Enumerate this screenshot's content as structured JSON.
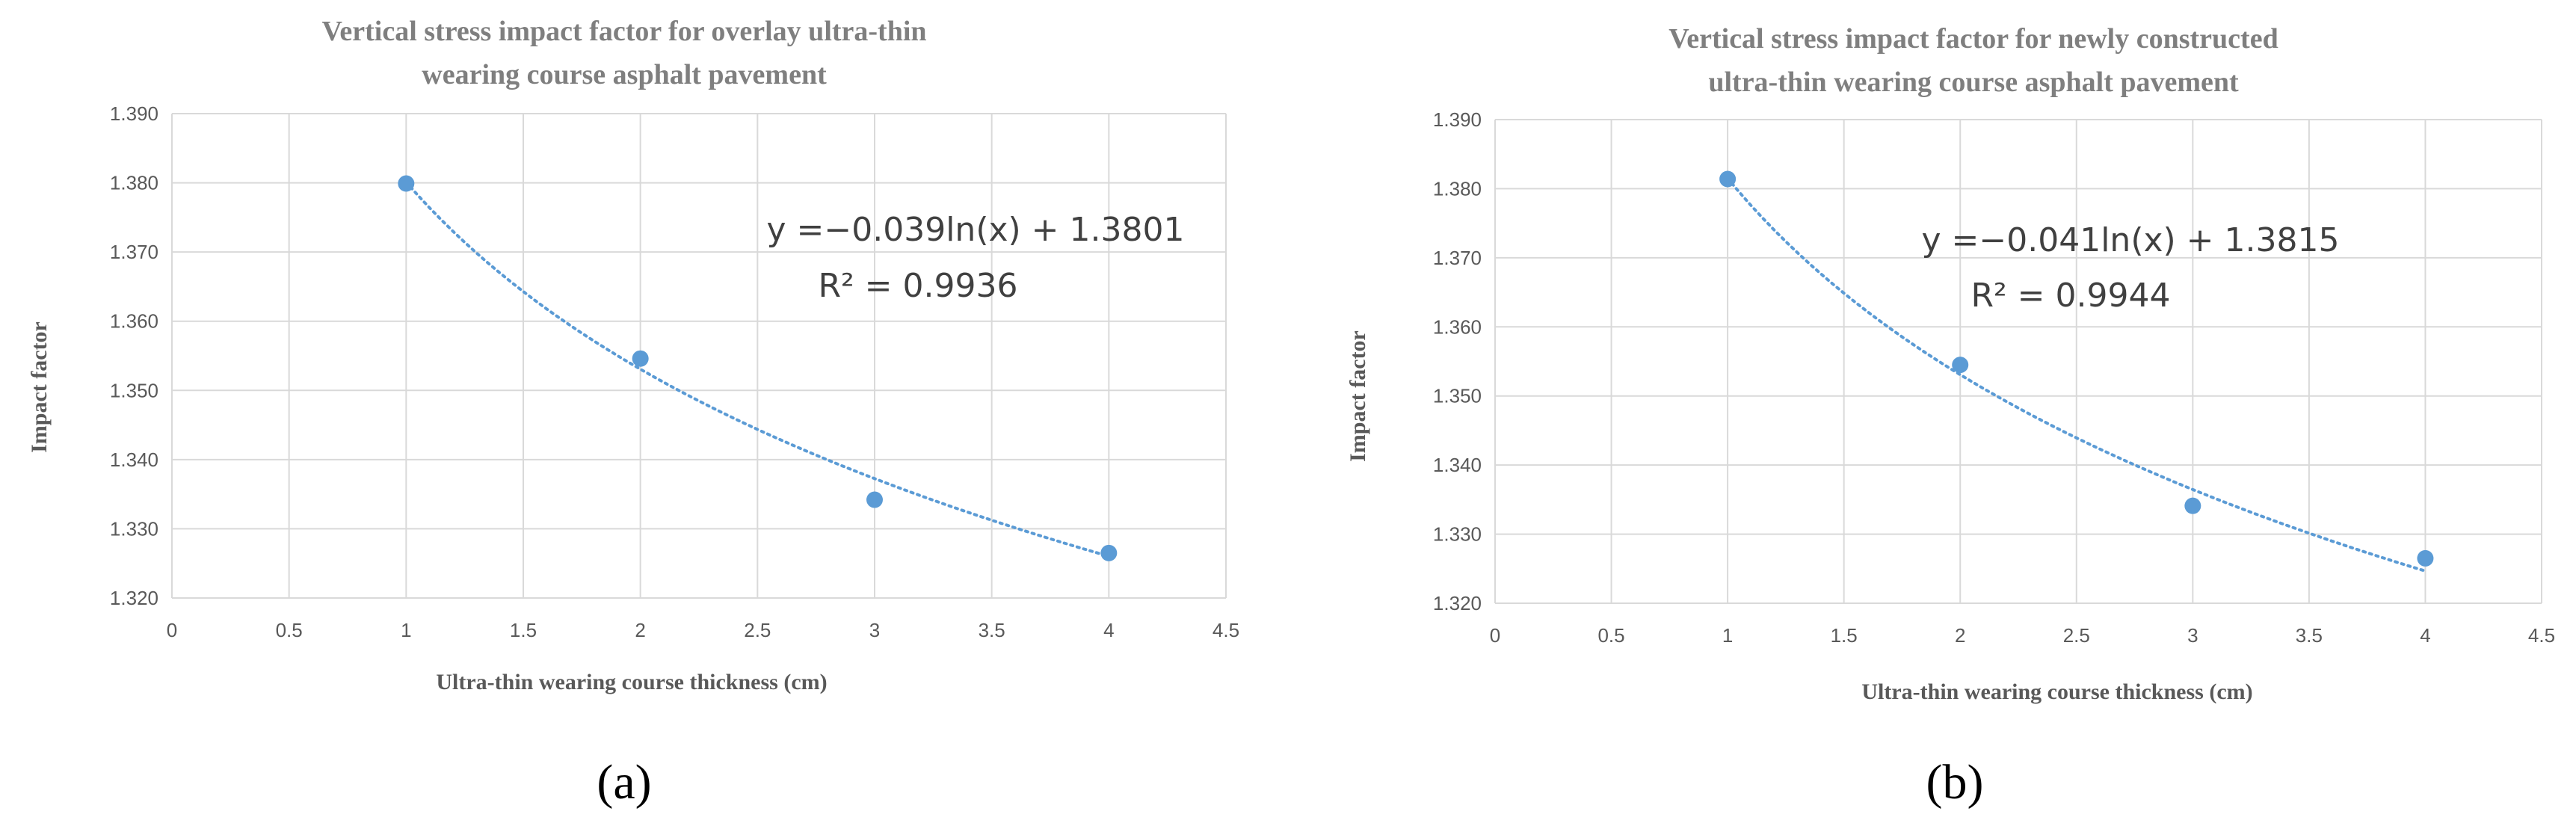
{
  "colors": {
    "series": "#5b9bd5",
    "grid": "#d9d9d9",
    "title": "#7f7f7f",
    "text": "#595959"
  },
  "chart_data": [
    {
      "type": "scatter",
      "panel_label": "(a)",
      "title": [
        "Vertical stress impact factor for overlay ultra-thin",
        "wearing course asphalt pavement"
      ],
      "xlabel": "Ultra-thin wearing course thickness (cm)",
      "ylabel": "Impact factor",
      "xlim": [
        0,
        4.5
      ],
      "ylim": [
        1.32,
        1.39
      ],
      "xticks": [
        "0",
        "0.5",
        "1",
        "1.5",
        "2",
        "2.5",
        "3",
        "3.5",
        "4",
        "4.5"
      ],
      "yticks": [
        "1.320",
        "1.330",
        "1.340",
        "1.350",
        "1.360",
        "1.370",
        "1.380",
        "1.390"
      ],
      "grid": true,
      "legend": "none",
      "x": [
        1,
        2,
        3,
        4
      ],
      "values": [
        1.3799,
        1.3546,
        1.3342,
        1.3265
      ],
      "trendline": {
        "type": "logarithmic",
        "a": -0.039,
        "b": 1.3801,
        "x_range": [
          1,
          4
        ]
      },
      "equation": "y =−0.039ln(x) + 1.3801",
      "r_squared": "R² = 0.9936"
    },
    {
      "type": "scatter",
      "panel_label": "(b)",
      "title": [
        "Vertical stress impact factor for newly constructed",
        "ultra-thin wearing course asphalt pavement"
      ],
      "xlabel": "Ultra-thin wearing course thickness (cm)",
      "ylabel": "Impact factor",
      "xlim": [
        0,
        4.5
      ],
      "ylim": [
        1.32,
        1.39
      ],
      "xticks": [
        "0",
        "0.5",
        "1",
        "1.5",
        "2",
        "2.5",
        "3",
        "3.5",
        "4",
        "4.5"
      ],
      "yticks": [
        "1.320",
        "1.330",
        "1.340",
        "1.350",
        "1.360",
        "1.370",
        "1.380",
        "1.390"
      ],
      "grid": true,
      "legend": "none",
      "x": [
        1,
        2,
        3,
        4
      ],
      "values": [
        1.3814,
        1.3545,
        1.3341,
        1.3265
      ],
      "trendline": {
        "type": "logarithmic",
        "a": -0.041,
        "b": 1.3815,
        "x_range": [
          1,
          4
        ]
      },
      "equation": "y =−0.041ln(x) + 1.3815",
      "r_squared": "R² = 0.9944"
    }
  ]
}
